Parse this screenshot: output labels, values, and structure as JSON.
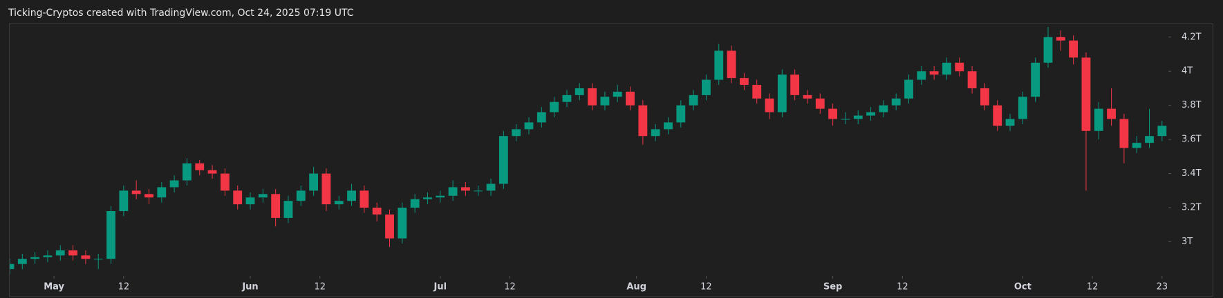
{
  "chart_data": {
    "type": "candlestick",
    "title": "Ticking-Cryptos created with TradingView.com, Oct 24, 2025 07:19 UTC",
    "up_color": "#089981",
    "down_color": "#f23645",
    "grid": false,
    "xlim": [
      "2025-04-24",
      "2025-10-24"
    ],
    "ylim": [
      2.8,
      4.28
    ],
    "yticks": [
      {
        "value": 3,
        "label": "3T"
      },
      {
        "value": 3.2,
        "label": "3.2T"
      },
      {
        "value": 3.4,
        "label": "3.4T"
      },
      {
        "value": 3.6,
        "label": "3.6T"
      },
      {
        "value": 3.8,
        "label": "3.8T"
      },
      {
        "value": 4,
        "label": "4T"
      },
      {
        "value": 4.2,
        "label": "4.2T"
      }
    ],
    "xticks": [
      {
        "value": "2025-05-01",
        "label": "May"
      },
      {
        "value": "2025-05-12",
        "label": "12"
      },
      {
        "value": "2025-06-01",
        "label": "Jun"
      },
      {
        "value": "2025-06-12",
        "label": "12"
      },
      {
        "value": "2025-07-01",
        "label": "Jul"
      },
      {
        "value": "2025-07-12",
        "label": "12"
      },
      {
        "value": "2025-08-01",
        "label": "Aug"
      },
      {
        "value": "2025-08-12",
        "label": "12"
      },
      {
        "value": "2025-09-01",
        "label": "Sep"
      },
      {
        "value": "2025-09-12",
        "label": "12"
      },
      {
        "value": "2025-10-01",
        "label": "Oct"
      },
      {
        "value": "2025-10-12",
        "label": "12"
      },
      {
        "value": "2025-10-23",
        "label": "23"
      }
    ],
    "x": [
      "2025-04-24",
      "2025-04-26",
      "2025-04-28",
      "2025-04-30",
      "2025-05-02",
      "2025-05-04",
      "2025-05-06",
      "2025-05-08",
      "2025-05-10",
      "2025-05-12",
      "2025-05-14",
      "2025-05-16",
      "2025-05-18",
      "2025-05-20",
      "2025-05-22",
      "2025-05-24",
      "2025-05-26",
      "2025-05-28",
      "2025-05-30",
      "2025-06-01",
      "2025-06-03",
      "2025-06-05",
      "2025-06-07",
      "2025-06-09",
      "2025-06-11",
      "2025-06-13",
      "2025-06-15",
      "2025-06-17",
      "2025-06-19",
      "2025-06-21",
      "2025-06-23",
      "2025-06-25",
      "2025-06-27",
      "2025-06-29",
      "2025-07-01",
      "2025-07-03",
      "2025-07-05",
      "2025-07-07",
      "2025-07-09",
      "2025-07-11",
      "2025-07-13",
      "2025-07-15",
      "2025-07-17",
      "2025-07-19",
      "2025-07-21",
      "2025-07-23",
      "2025-07-25",
      "2025-07-27",
      "2025-07-29",
      "2025-07-31",
      "2025-08-02",
      "2025-08-04",
      "2025-08-06",
      "2025-08-08",
      "2025-08-10",
      "2025-08-12",
      "2025-08-14",
      "2025-08-16",
      "2025-08-18",
      "2025-08-20",
      "2025-08-22",
      "2025-08-24",
      "2025-08-26",
      "2025-08-28",
      "2025-08-30",
      "2025-09-01",
      "2025-09-03",
      "2025-09-05",
      "2025-09-07",
      "2025-09-09",
      "2025-09-11",
      "2025-09-13",
      "2025-09-15",
      "2025-09-17",
      "2025-09-19",
      "2025-09-21",
      "2025-09-23",
      "2025-09-25",
      "2025-09-27",
      "2025-09-29",
      "2025-10-01",
      "2025-10-03",
      "2025-10-05",
      "2025-10-07",
      "2025-10-09",
      "2025-10-11",
      "2025-10-13",
      "2025-10-15",
      "2025-10-17",
      "2025-10-19",
      "2025-10-21",
      "2025-10-23"
    ],
    "open": [
      2.84,
      2.87,
      2.9,
      2.91,
      2.92,
      2.95,
      2.92,
      2.9,
      2.9,
      3.18,
      3.3,
      3.28,
      3.26,
      3.32,
      3.36,
      3.46,
      3.42,
      3.4,
      3.3,
      3.22,
      3.26,
      3.28,
      3.14,
      3.24,
      3.3,
      3.4,
      3.22,
      3.24,
      3.3,
      3.2,
      3.16,
      3.02,
      3.2,
      3.25,
      3.26,
      3.27,
      3.32,
      3.3,
      3.3,
      3.34,
      3.62,
      3.66,
      3.7,
      3.76,
      3.82,
      3.86,
      3.9,
      3.8,
      3.85,
      3.88,
      3.8,
      3.62,
      3.66,
      3.7,
      3.8,
      3.86,
      3.95,
      4.12,
      3.96,
      3.92,
      3.84,
      3.76,
      3.98,
      3.86,
      3.84,
      3.78,
      3.72,
      3.72,
      3.74,
      3.76,
      3.8,
      3.84,
      3.95,
      4.0,
      3.98,
      4.05,
      4.0,
      3.9,
      3.8,
      3.68,
      3.72,
      3.85,
      4.05,
      4.2,
      4.18,
      4.08,
      3.65,
      3.78,
      3.72,
      3.55,
      3.58,
      3.62
    ],
    "high": [
      2.9,
      2.93,
      2.94,
      2.95,
      2.98,
      2.98,
      2.95,
      2.93,
      3.21,
      3.33,
      3.36,
      3.31,
      3.35,
      3.39,
      3.49,
      3.48,
      3.45,
      3.43,
      3.33,
      3.29,
      3.31,
      3.31,
      3.27,
      3.33,
      3.44,
      3.43,
      3.27,
      3.34,
      3.33,
      3.23,
      3.19,
      3.23,
      3.28,
      3.29,
      3.3,
      3.36,
      3.35,
      3.33,
      3.37,
      3.65,
      3.69,
      3.73,
      3.79,
      3.85,
      3.89,
      3.93,
      3.93,
      3.88,
      3.92,
      3.91,
      3.83,
      3.69,
      3.73,
      3.83,
      3.89,
      3.98,
      4.16,
      4.15,
      3.99,
      3.95,
      3.87,
      4.01,
      4.01,
      3.89,
      3.87,
      3.81,
      3.76,
      3.77,
      3.79,
      3.83,
      3.87,
      3.98,
      4.03,
      4.03,
      4.08,
      4.08,
      4.03,
      3.93,
      3.83,
      3.75,
      3.88,
      4.08,
      4.26,
      4.24,
      4.21,
      4.11,
      3.82,
      3.9,
      3.75,
      3.62,
      3.78,
      3.71
    ],
    "low": [
      2.81,
      2.84,
      2.87,
      2.88,
      2.89,
      2.89,
      2.87,
      2.84,
      2.87,
      3.15,
      3.25,
      3.22,
      3.23,
      3.29,
      3.33,
      3.39,
      3.37,
      3.27,
      3.19,
      3.19,
      3.23,
      3.09,
      3.11,
      3.21,
      3.27,
      3.18,
      3.19,
      3.21,
      3.17,
      3.12,
      2.97,
      2.99,
      3.17,
      3.22,
      3.23,
      3.24,
      3.27,
      3.27,
      3.27,
      3.31,
      3.59,
      3.63,
      3.67,
      3.73,
      3.79,
      3.83,
      3.77,
      3.77,
      3.82,
      3.77,
      3.57,
      3.59,
      3.63,
      3.67,
      3.77,
      3.83,
      3.92,
      3.93,
      3.89,
      3.81,
      3.72,
      3.73,
      3.83,
      3.81,
      3.75,
      3.68,
      3.69,
      3.69,
      3.71,
      3.73,
      3.77,
      3.81,
      3.92,
      3.95,
      3.95,
      3.97,
      3.87,
      3.77,
      3.65,
      3.65,
      3.69,
      3.82,
      4.02,
      4.12,
      4.04,
      3.3,
      3.6,
      3.68,
      3.46,
      3.52,
      3.55,
      3.59
    ],
    "close": [
      2.87,
      2.9,
      2.91,
      2.92,
      2.95,
      2.92,
      2.9,
      2.9,
      3.18,
      3.3,
      3.28,
      3.26,
      3.32,
      3.36,
      3.46,
      3.42,
      3.4,
      3.3,
      3.22,
      3.26,
      3.28,
      3.14,
      3.24,
      3.3,
      3.4,
      3.22,
      3.24,
      3.3,
      3.2,
      3.16,
      3.02,
      3.2,
      3.25,
      3.26,
      3.27,
      3.32,
      3.3,
      3.3,
      3.34,
      3.62,
      3.66,
      3.7,
      3.76,
      3.82,
      3.86,
      3.9,
      3.8,
      3.85,
      3.88,
      3.8,
      3.62,
      3.66,
      3.7,
      3.8,
      3.86,
      3.95,
      4.12,
      3.96,
      3.92,
      3.84,
      3.76,
      3.98,
      3.86,
      3.84,
      3.78,
      3.72,
      3.72,
      3.74,
      3.76,
      3.8,
      3.84,
      3.95,
      4.0,
      3.98,
      4.05,
      4.0,
      3.9,
      3.8,
      3.68,
      3.72,
      3.85,
      4.05,
      4.2,
      4.18,
      4.08,
      3.65,
      3.78,
      3.72,
      3.55,
      3.58,
      3.62,
      3.68
    ]
  }
}
